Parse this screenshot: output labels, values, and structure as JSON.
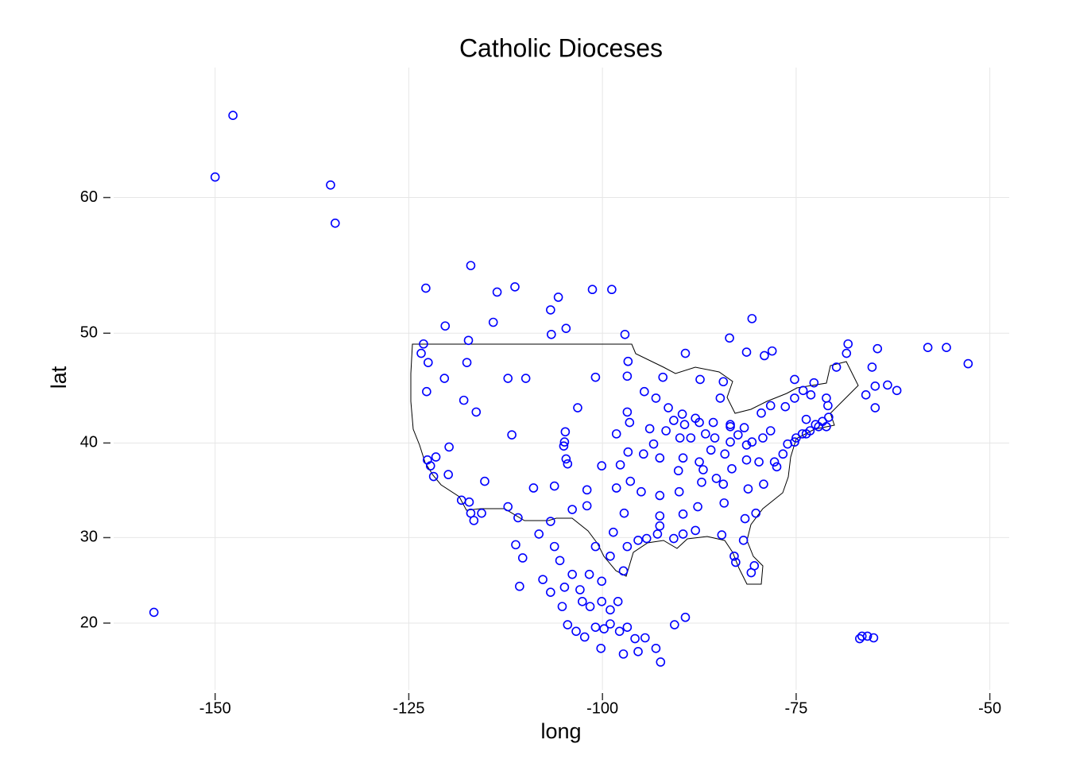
{
  "chart_data": {
    "type": "scatter",
    "title": "Catholic Dioceses",
    "xlabel": "long",
    "ylabel": "lat",
    "projection": "mercator",
    "color": "#0000ff",
    "grid": true,
    "xlim": [
      -163.1,
      -47.5
    ],
    "ylim": [
      11.7,
      67.4
    ],
    "xticks": [
      -150,
      -125,
      -100,
      -75,
      -50
    ],
    "yticks": [
      20,
      30,
      40,
      50,
      60
    ],
    "x": [
      -147.7,
      -150.0,
      -135.1,
      -134.5,
      -157.9,
      -117.0,
      -122.8,
      -113.6,
      -111.3,
      -101.3,
      -98.8,
      -105.7,
      -106.7,
      -120.3,
      -114.1,
      -104.7,
      -106.6,
      -97.1,
      -123.1,
      -117.3,
      -83.6,
      -80.7,
      -81.4,
      -79.1,
      -78.1,
      -68.3,
      -68.5,
      -64.5,
      -58.0,
      -55.6,
      -52.8,
      -123.4,
      -122.5,
      -117.5,
      -96.7,
      -89.3,
      -69.8,
      -65.2,
      -122.7,
      -120.4,
      -112.2,
      -109.9,
      -100.9,
      -96.8,
      -92.2,
      -87.4,
      -84.4,
      -75.2,
      -72.7,
      -66.0,
      -63.2,
      -62.0,
      -64.8,
      -64.8,
      -117.9,
      -116.3,
      -103.2,
      -96.8,
      -96.5,
      -94.6,
      -93.1,
      -91.5,
      -89.7,
      -88.0,
      -89.4,
      -90.8,
      -84.8,
      -85.7,
      -83.5,
      -81.7,
      -79.5,
      -78.3,
      -76.4,
      -75.2,
      -74.1,
      -73.1,
      -71.1,
      -70.9,
      -73.7,
      -72.1,
      -71.1,
      -74.2,
      -75.2,
      -76.7,
      -77.8,
      -79.8,
      -81.4,
      -84.2,
      -86.0,
      -87.5,
      -89.6,
      -90.2,
      -92.6,
      -94.7,
      -96.7,
      -98.2,
      -98.2,
      -104.8,
      -104.9,
      -105.0,
      -104.7,
      -104.5,
      -111.7,
      -119.8,
      -121.5,
      -122.6,
      -122.2,
      -121.8,
      -119.9,
      -118.2,
      -117.2,
      -117.0,
      -116.6,
      -115.6,
      -115.2,
      -112.2,
      -110.9,
      -108.9,
      -106.2,
      -102.0,
      -102.0,
      -100.1,
      -97.7,
      -96.4,
      -95.0,
      -92.6,
      -90.1,
      -87.2,
      -84.4,
      -81.2,
      -79.2,
      -80.2,
      -81.6,
      -84.6,
      -81.8,
      -83.0,
      -82.8,
      -80.4,
      -80.8,
      -88.0,
      -89.6,
      -90.8,
      -92.9,
      -94.3,
      -95.4,
      -92.6,
      -92.6,
      -89.6,
      -87.7,
      -84.3,
      -97.2,
      -98.6,
      -96.8,
      -97.3,
      -100.9,
      -99.0,
      -103.9,
      -106.7,
      -106.2,
      -108.2,
      -111.2,
      -110.3,
      -107.7,
      -106.7,
      -105.5,
      -103.9,
      -101.7,
      -100.1,
      -102.9,
      -104.9,
      -110.7,
      -105.2,
      -102.6,
      -101.6,
      -100.1,
      -99.0,
      -98.0,
      -104.5,
      -103.4,
      -102.3,
      -100.9,
      -99.8,
      -99.0,
      -97.8,
      -96.8,
      -95.8,
      -94.5,
      -100.2,
      -97.3,
      -95.4,
      -93.1,
      -92.5,
      -90.7,
      -89.3,
      -66.5,
      -65.8,
      -65.0,
      -66.8,
      -73.7,
      -73.2,
      -71.6,
      -70.8,
      -72.5,
      -75.0,
      -76.1,
      -77.5,
      -81.4,
      -83.5,
      -85.5,
      -86.7,
      -87.0,
      -85.3,
      -83.3,
      -80.7,
      -79.3,
      -78.3,
      -83.5,
      -82.5,
      -87.5,
      -88.6,
      -90.0,
      -93.9,
      -91.8,
      -93.4
    ],
    "values": [
      64.9,
      61.3,
      60.8,
      58.3,
      21.3,
      55.3,
      53.6,
      53.3,
      53.7,
      53.5,
      53.5,
      52.9,
      51.9,
      50.6,
      50.9,
      50.4,
      49.9,
      49.9,
      49.1,
      49.4,
      49.6,
      51.2,
      48.4,
      48.1,
      48.5,
      49.1,
      48.3,
      48.7,
      48.8,
      48.8,
      47.4,
      48.3,
      47.5,
      47.5,
      47.6,
      48.3,
      47.1,
      47.1,
      44.9,
      46.1,
      46.1,
      46.1,
      46.2,
      46.3,
      46.2,
      46.0,
      45.8,
      46.0,
      45.7,
      44.6,
      45.5,
      45.0,
      45.4,
      43.4,
      44.1,
      43.0,
      43.4,
      43.0,
      42.0,
      44.9,
      44.3,
      43.4,
      42.8,
      42.4,
      41.8,
      42.2,
      44.3,
      42.0,
      41.8,
      41.5,
      42.9,
      43.6,
      43.5,
      44.3,
      45.0,
      44.6,
      44.3,
      43.6,
      42.3,
      41.6,
      41.6,
      40.9,
      40.1,
      38.9,
      38.1,
      38.1,
      38.3,
      38.9,
      39.3,
      38.1,
      38.5,
      37.2,
      38.5,
      38.9,
      39.1,
      40.9,
      35.4,
      41.1,
      40.1,
      39.7,
      38.4,
      37.9,
      40.8,
      39.6,
      38.6,
      38.3,
      37.7,
      36.6,
      36.8,
      34.1,
      33.9,
      32.7,
      31.9,
      32.7,
      36.1,
      33.4,
      32.2,
      35.4,
      35.6,
      35.2,
      33.5,
      37.7,
      37.8,
      36.1,
      35.0,
      34.6,
      35.0,
      36.0,
      35.8,
      35.3,
      35.8,
      32.7,
      32.1,
      30.3,
      29.7,
      27.9,
      27.2,
      26.8,
      26.0,
      30.8,
      30.4,
      29.9,
      30.4,
      29.9,
      29.7,
      31.3,
      32.4,
      32.6,
      33.4,
      33.8,
      32.7,
      30.6,
      29.0,
      26.2,
      29.0,
      27.9,
      33.1,
      31.8,
      29.0,
      30.4,
      29.2,
      27.7,
      25.2,
      23.7,
      27.4,
      25.8,
      25.8,
      25.0,
      24.0,
      24.3,
      24.4,
      22.0,
      22.6,
      22.0,
      22.6,
      21.6,
      22.6,
      19.8,
      19.0,
      18.3,
      19.5,
      19.3,
      19.9,
      19.0,
      19.5,
      18.1,
      18.2,
      16.9,
      16.2,
      16.5,
      16.9,
      15.2,
      19.8,
      20.7,
      18.4,
      18.4,
      18.2,
      18.1,
      40.9,
      41.2,
      42.1,
      42.5,
      41.8,
      40.5,
      39.9,
      37.6,
      39.8,
      40.1,
      40.5,
      40.9,
      37.3,
      36.4,
      37.4,
      40.1,
      40.5,
      41.2,
      41.6,
      40.8,
      42.0,
      40.5,
      40.5,
      41.4,
      41.2,
      39.9
    ]
  }
}
